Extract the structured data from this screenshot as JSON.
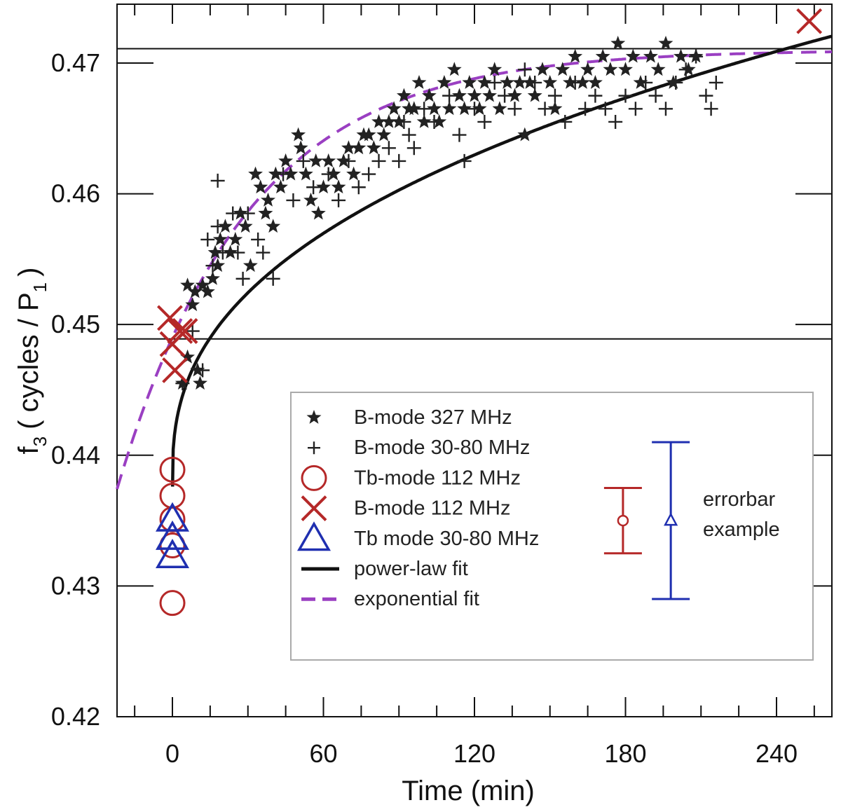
{
  "chart_data": {
    "type": "scatter",
    "xlabel": "Time (min)",
    "ylabel_main": "f",
    "ylabel_sub": "3",
    "ylabel_rest": "( cycles / P",
    "ylabel_rest_sub": "1",
    "ylabel_close": ")",
    "xlim": [
      -22,
      262
    ],
    "ylim": [
      0.42,
      0.4745
    ],
    "xticks": [
      0,
      60,
      120,
      180,
      240
    ],
    "yticks": [
      0.42,
      0.43,
      0.44,
      0.45,
      0.46,
      0.47
    ],
    "ytick_labels": [
      "0.42",
      "0.43",
      "0.44",
      "0.45",
      "0.46",
      "0.47"
    ],
    "reference_lines_y": [
      0.4711,
      0.4489
    ],
    "colors": {
      "axis": "#111111",
      "stars": "#222222",
      "plus": "#222222",
      "red": "#b52828",
      "blue": "#1f2fb0",
      "powerlaw": "#111111",
      "exponential": "#9a3fc2",
      "legend_border": "#aaaaaa"
    },
    "legend": [
      {
        "label": "B-mode 327 MHz",
        "marker": "star"
      },
      {
        "label": "B-mode 30-80 MHz",
        "marker": "plus"
      },
      {
        "label": "Tb-mode 112 MHz",
        "marker": "circle"
      },
      {
        "label": "B-mode 112 MHz",
        "marker": "x"
      },
      {
        "label": "Tb mode 30-80 MHz",
        "marker": "triangle"
      },
      {
        "label": "power-law fit",
        "marker": "solid-line"
      },
      {
        "label": "exponential fit",
        "marker": "dashed-line"
      }
    ],
    "errorbar_text": [
      "errorbar",
      "example"
    ],
    "errorbars": [
      {
        "name": "red-example",
        "x": 179,
        "y": 0.435,
        "low": 0.4325,
        "high": 0.4375,
        "marker": "circle",
        "color": "red"
      },
      {
        "name": "blue-example",
        "x": 198,
        "y": 0.435,
        "low": 0.429,
        "high": 0.441,
        "marker": "triangle",
        "color": "blue"
      }
    ],
    "series": [
      {
        "name": "B-mode 327 MHz",
        "marker": "star",
        "x": [
          4,
          6,
          6,
          8,
          9,
          10,
          11,
          12,
          14,
          16,
          17,
          18,
          19,
          21,
          23,
          25,
          27,
          29,
          31,
          33,
          35,
          37,
          38,
          40,
          41,
          43,
          45,
          47,
          50,
          51,
          53,
          55,
          57,
          58,
          60,
          62,
          64,
          66,
          68,
          70,
          72,
          74,
          76,
          78,
          80,
          82,
          84,
          86,
          88,
          90,
          92,
          94,
          96,
          98,
          100,
          102,
          104,
          106,
          108,
          110,
          112,
          114,
          116,
          118,
          120,
          122,
          124,
          126,
          128,
          130,
          133,
          136,
          138,
          140,
          142,
          144,
          147,
          150,
          152,
          155,
          158,
          160,
          163,
          165,
          168,
          171,
          174,
          177,
          180,
          183,
          186,
          190,
          193,
          196,
          199,
          202,
          205,
          208
        ],
        "y": [
          0.4455,
          0.4475,
          0.453,
          0.4515,
          0.4525,
          0.4465,
          0.4455,
          0.453,
          0.4525,
          0.4535,
          0.4555,
          0.4545,
          0.4565,
          0.4575,
          0.4555,
          0.4565,
          0.4585,
          0.4575,
          0.4545,
          0.4615,
          0.4605,
          0.4585,
          0.4595,
          0.4575,
          0.4615,
          0.4605,
          0.4625,
          0.4615,
          0.4645,
          0.4635,
          0.4615,
          0.4595,
          0.4625,
          0.4585,
          0.4605,
          0.4625,
          0.4615,
          0.4605,
          0.4625,
          0.4635,
          0.4615,
          0.4635,
          0.4645,
          0.4645,
          0.4635,
          0.4655,
          0.4645,
          0.4655,
          0.4665,
          0.4655,
          0.4675,
          0.4665,
          0.4665,
          0.4685,
          0.4655,
          0.4675,
          0.4665,
          0.4655,
          0.4685,
          0.4665,
          0.4695,
          0.4675,
          0.4665,
          0.4685,
          0.4675,
          0.4665,
          0.4685,
          0.4675,
          0.4695,
          0.4665,
          0.4685,
          0.4675,
          0.4685,
          0.4645,
          0.4685,
          0.4675,
          0.4695,
          0.4685,
          0.4665,
          0.4695,
          0.4685,
          0.4705,
          0.4685,
          0.4695,
          0.4685,
          0.4705,
          0.4695,
          0.4715,
          0.4695,
          0.4705,
          0.4685,
          0.4705,
          0.4695,
          0.4715,
          0.4685,
          0.4705,
          0.4695,
          0.4705
        ]
      },
      {
        "name": "B-mode 30-80 MHz",
        "marker": "plus",
        "x": [
          4,
          8,
          12,
          14,
          16,
          18,
          18,
          20,
          24,
          26,
          28,
          30,
          34,
          36,
          40,
          44,
          48,
          52,
          56,
          62,
          66,
          70,
          74,
          78,
          82,
          86,
          90,
          92,
          94,
          96,
          100,
          104,
          110,
          114,
          116,
          120,
          124,
          128,
          132,
          136,
          140,
          144,
          148,
          152,
          156,
          160,
          164,
          168,
          172,
          176,
          180,
          184,
          188,
          192,
          196,
          200,
          204,
          208,
          212,
          214,
          216
        ],
        "y": [
          0.4455,
          0.4495,
          0.4465,
          0.4565,
          0.4545,
          0.461,
          0.4575,
          0.4555,
          0.4585,
          0.4555,
          0.4535,
          0.4585,
          0.4565,
          0.4555,
          0.4535,
          0.4615,
          0.4595,
          0.4625,
          0.4605,
          0.4615,
          0.4595,
          0.4625,
          0.4605,
          0.4615,
          0.4625,
          0.4635,
          0.4625,
          0.4655,
          0.4645,
          0.4635,
          0.4665,
          0.4655,
          0.4675,
          0.4645,
          0.4625,
          0.4665,
          0.4655,
          0.4685,
          0.4675,
          0.4665,
          0.4695,
          0.4685,
          0.4665,
          0.4675,
          0.4655,
          0.4685,
          0.4665,
          0.4675,
          0.4665,
          0.4655,
          0.4675,
          0.4665,
          0.4685,
          0.4675,
          0.4665,
          0.4685,
          0.4695,
          0.4705,
          0.4675,
          0.4665,
          0.4685
        ]
      },
      {
        "name": "Tb-mode 112 MHz",
        "marker": "circle",
        "x": [
          0,
          0,
          0,
          0,
          0
        ],
        "y": [
          0.4389,
          0.4369,
          0.4351,
          0.4331,
          0.4287
        ]
      },
      {
        "name": "B-mode 112 MHz",
        "marker": "x",
        "x": [
          -1,
          3,
          0,
          5,
          1,
          5,
          253
        ],
        "y": [
          0.4505,
          0.4495,
          0.4485,
          0.4495,
          0.4465,
          0.4495,
          0.4732
        ]
      },
      {
        "name": "Tb mode 30-80 MHz",
        "marker": "triangle",
        "x": [
          0,
          0,
          0
        ],
        "y": [
          0.4351,
          0.4337,
          0.4323
        ]
      }
    ],
    "fits": {
      "powerlaw": {
        "model": "f = 0.4382 + 0.00365 * t^0.4 (approx)"
      },
      "exponential": {
        "model": "f = 0.4710 - 0.0220 * exp(-t/52) (approx)"
      }
    }
  }
}
